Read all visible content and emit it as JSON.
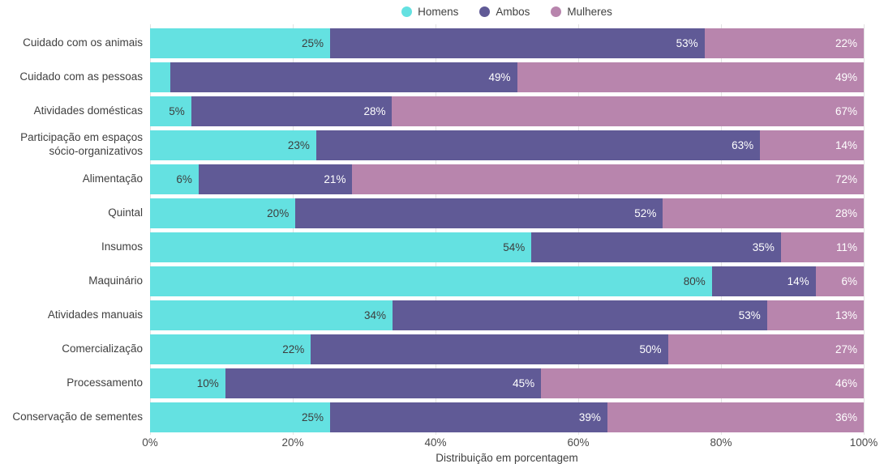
{
  "chart_data": {
    "type": "bar",
    "orientation": "horizontal",
    "stacked": true,
    "xlabel": "Distribuição em porcentagem",
    "xlim": [
      0,
      100
    ],
    "x_ticks": [
      "0%",
      "20%",
      "40%",
      "60%",
      "80%",
      "100%"
    ],
    "grid": true,
    "legend_position": "top",
    "legend": [
      {
        "name": "Homens",
        "color": "#64E1E1"
      },
      {
        "name": "Ambos",
        "color": "#605A96"
      },
      {
        "name": "Mulheres",
        "color": "#B885AD"
      }
    ],
    "label_colors": [
      "#3D3D3D",
      "#FFFFFF",
      "#FFFFFF"
    ],
    "categories": [
      "Cuidado com os animais",
      "Cuidado com as pessoas",
      "Atividades domésticas",
      "Participação em espaços sócio-organizativos",
      "Alimentação",
      "Quintal",
      "Insumos",
      "Maquinário",
      "Atividades manuais",
      "Comercialização",
      "Processamento",
      "Conservação de sementes"
    ],
    "series": [
      {
        "name": "Homens",
        "values": [
          25,
          2,
          5,
          23,
          6,
          20,
          54,
          80,
          34,
          22,
          10,
          25
        ]
      },
      {
        "name": "Ambos",
        "values": [
          53,
          49,
          28,
          63,
          21,
          52,
          35,
          14,
          53,
          50,
          45,
          39
        ]
      },
      {
        "name": "Mulheres",
        "values": [
          22,
          49,
          67,
          14,
          72,
          28,
          11,
          6,
          13,
          27,
          46,
          36
        ]
      }
    ],
    "data_labels": [
      [
        "25%",
        "53%",
        "22%"
      ],
      [
        "",
        "49%",
        "49%"
      ],
      [
        "5%",
        "28%",
        "67%"
      ],
      [
        "23%",
        "63%",
        "14%"
      ],
      [
        "6%",
        "21%",
        "72%"
      ],
      [
        "20%",
        "52%",
        "28%"
      ],
      [
        "54%",
        "35%",
        "11%"
      ],
      [
        "80%",
        "14%",
        "6%"
      ],
      [
        "34%",
        "53%",
        "13%"
      ],
      [
        "22%",
        "50%",
        "27%"
      ],
      [
        "10%",
        "45%",
        "46%"
      ],
      [
        "25%",
        "39%",
        "36%"
      ]
    ]
  }
}
